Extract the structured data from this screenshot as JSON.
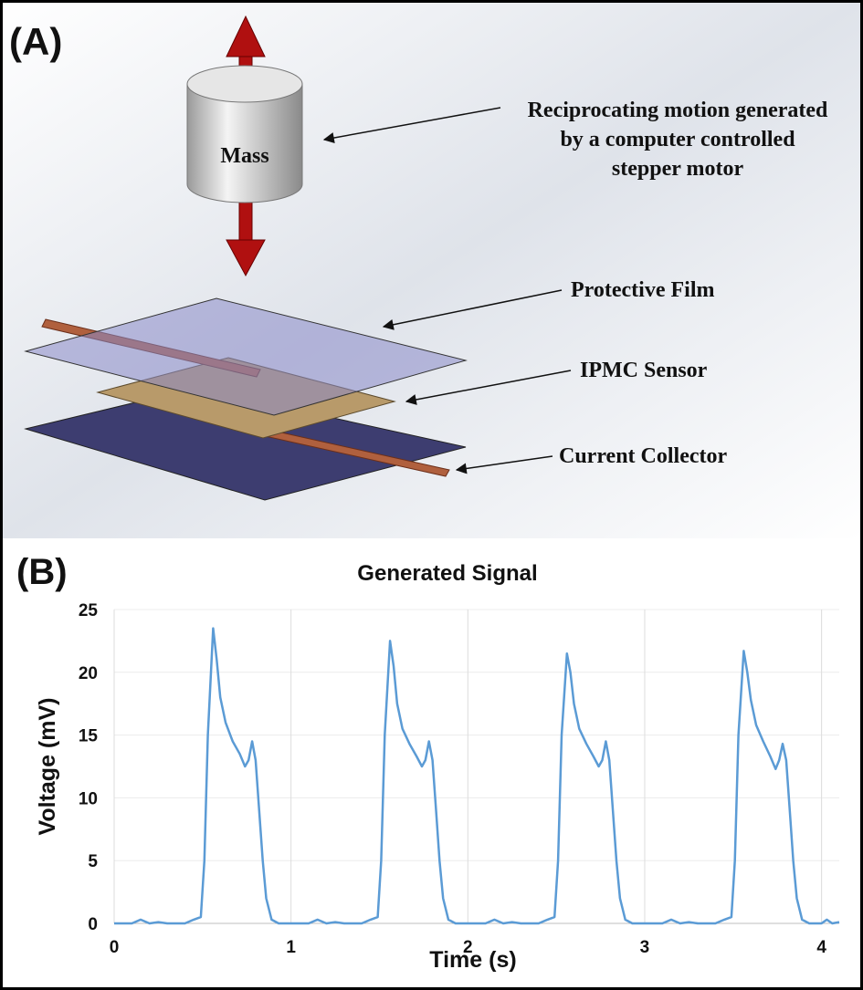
{
  "diagram": {
    "label": "(A)",
    "mass": "Mass",
    "motion_note": [
      "Reciprocating motion generated",
      "by a computer controlled",
      "stepper motor"
    ],
    "layers": [
      "Protective Film",
      "IPMC Sensor",
      "Current Collector"
    ]
  },
  "chart_data": {
    "type": "line",
    "panel_label": "(B)",
    "title": "Generated Signal",
    "x_label": "Time (s)",
    "y_label": "Voltage (mV)",
    "xlim": [
      0,
      4.1
    ],
    "ylim": [
      0,
      25
    ],
    "xticks": [
      0,
      1,
      2,
      3,
      4
    ],
    "yticks": [
      0,
      5,
      10,
      15,
      20,
      25
    ],
    "grid": true,
    "series": [
      {
        "name": "Generated Signal",
        "color": "#5b9bd5",
        "x": [
          0,
          0.1,
          0.15,
          0.2,
          0.25,
          0.3,
          0.4,
          0.45,
          0.49,
          0.51,
          0.53,
          0.56,
          0.58,
          0.6,
          0.63,
          0.67,
          0.71,
          0.74,
          0.76,
          0.78,
          0.8,
          0.82,
          0.84,
          0.86,
          0.89,
          0.93,
          1,
          1.1,
          1.15,
          1.2,
          1.25,
          1.3,
          1.4,
          1.45,
          1.49,
          1.51,
          1.53,
          1.56,
          1.58,
          1.6,
          1.63,
          1.67,
          1.71,
          1.74,
          1.76,
          1.78,
          1.8,
          1.82,
          1.84,
          1.86,
          1.89,
          1.93,
          2,
          2.1,
          2.15,
          2.2,
          2.25,
          2.3,
          2.4,
          2.45,
          2.49,
          2.51,
          2.53,
          2.56,
          2.58,
          2.6,
          2.63,
          2.67,
          2.71,
          2.74,
          2.76,
          2.78,
          2.8,
          2.82,
          2.84,
          2.86,
          2.89,
          2.93,
          3,
          3.1,
          3.15,
          3.2,
          3.25,
          3.3,
          3.4,
          3.45,
          3.49,
          3.51,
          3.53,
          3.56,
          3.58,
          3.6,
          3.63,
          3.67,
          3.71,
          3.74,
          3.76,
          3.78,
          3.8,
          3.82,
          3.84,
          3.86,
          3.89,
          3.93,
          4,
          4.03,
          4.06,
          4.1
        ],
        "values": [
          0,
          0,
          0.3,
          0,
          0.1,
          0,
          0,
          0.3,
          0.5,
          5,
          15,
          23.5,
          21,
          18,
          16,
          14.5,
          13.5,
          12.5,
          13,
          14.5,
          13,
          9,
          5,
          2,
          0.3,
          0,
          0,
          0,
          0.3,
          0,
          0.1,
          0,
          0,
          0.3,
          0.5,
          5,
          15,
          22.5,
          20.5,
          17.5,
          15.5,
          14.3,
          13.3,
          12.5,
          13,
          14.5,
          13,
          9,
          5,
          2,
          0.3,
          0,
          0,
          0,
          0.3,
          0,
          0.1,
          0,
          0,
          0.3,
          0.5,
          5,
          15,
          21.5,
          20,
          17.5,
          15.5,
          14.3,
          13.3,
          12.5,
          13,
          14.5,
          13,
          9,
          5,
          2,
          0.3,
          0,
          0,
          0,
          0.3,
          0,
          0.1,
          0,
          0,
          0.3,
          0.5,
          5,
          15,
          21.7,
          20,
          17.8,
          15.8,
          14.5,
          13.3,
          12.3,
          13,
          14.3,
          13,
          9,
          5,
          2,
          0.3,
          0,
          0,
          0.3,
          0,
          0.1
        ]
      }
    ]
  }
}
